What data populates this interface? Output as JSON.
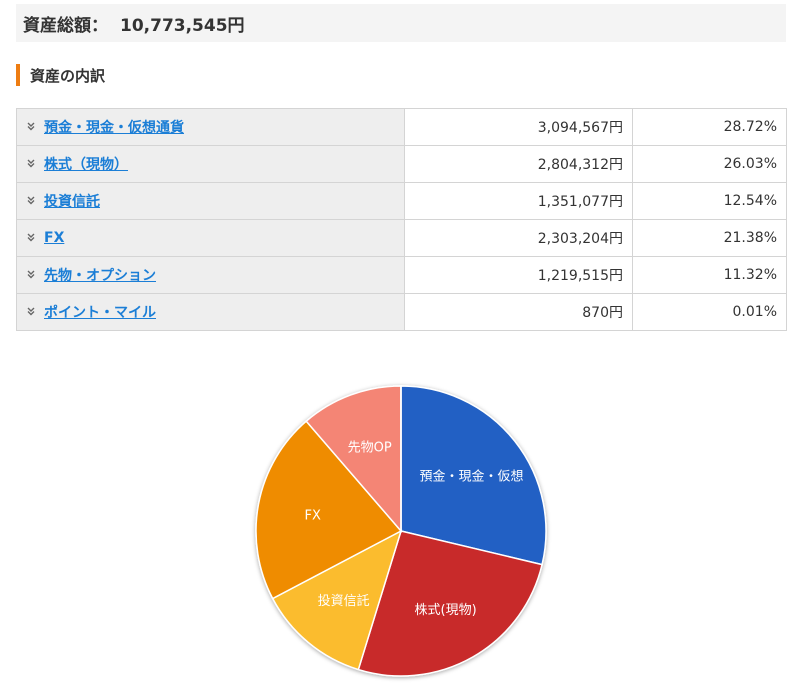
{
  "header": {
    "total_label": "資産総額：",
    "total_value": "10,773,545円"
  },
  "section": {
    "title": "資産の内訳"
  },
  "breakdown": {
    "rows": [
      {
        "label": "預金・現金・仮想通貨",
        "amount": "3,094,567円",
        "percent": "28.72%"
      },
      {
        "label": "株式（現物）",
        "amount": "2,804,312円",
        "percent": "26.03%"
      },
      {
        "label": "投資信託",
        "amount": "1,351,077円",
        "percent": "12.54%"
      },
      {
        "label": "FX",
        "amount": "2,303,204円",
        "percent": "21.38%"
      },
      {
        "label": "先物・オプション",
        "amount": "1,219,515円",
        "percent": "11.32%"
      },
      {
        "label": "ポイント・マイル",
        "amount": "870円",
        "percent": "0.01%"
      }
    ]
  },
  "chart_data": {
    "type": "pie",
    "slices": [
      {
        "label": "預金・現金・仮想",
        "value": 28.72,
        "color": "#2160c4"
      },
      {
        "label": "株式(現物)",
        "value": 26.03,
        "color": "#c8292a"
      },
      {
        "label": "投資信託",
        "value": 12.54,
        "color": "#fbbc2f"
      },
      {
        "label": "FX",
        "value": 21.38,
        "color": "#ef8c00"
      },
      {
        "label": "先物OP",
        "value": 11.32,
        "color": "#f48575"
      },
      {
        "label": "",
        "value": 0.01,
        "color": "#9e9e9e"
      }
    ]
  },
  "colors": {
    "accent": "#ee7d12",
    "link": "#1b7ed6"
  },
  "icons": {
    "row_expand": "chevron-double-down-icon"
  }
}
